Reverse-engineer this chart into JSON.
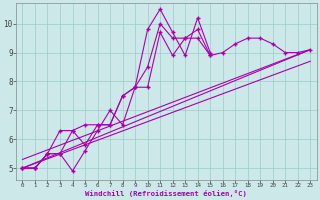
{
  "xlabel": "Windchill (Refroidissement éolien,°C)",
  "bg_color": "#cce8e8",
  "line_color": "#aa00aa",
  "grid_color": "#99cccc",
  "xlim": [
    -0.5,
    23.5
  ],
  "ylim": [
    4.6,
    10.7
  ],
  "xticks": [
    0,
    1,
    2,
    3,
    4,
    5,
    6,
    7,
    8,
    9,
    10,
    11,
    12,
    13,
    14,
    15,
    16,
    17,
    18,
    19,
    20,
    21,
    22,
    23
  ],
  "yticks": [
    5,
    6,
    7,
    8,
    9,
    10
  ],
  "series1_x": [
    0,
    1,
    2,
    3,
    4,
    5,
    6,
    7,
    8,
    9,
    10,
    11,
    12,
    13,
    14,
    15,
    16,
    17,
    18,
    19,
    20,
    21,
    22,
    23
  ],
  "series1_y": [
    5.0,
    5.0,
    5.5,
    5.5,
    6.3,
    5.8,
    6.5,
    6.5,
    7.5,
    7.8,
    8.5,
    10.0,
    9.5,
    9.5,
    9.8,
    8.9,
    9.0,
    9.3,
    9.5,
    9.5,
    9.3,
    9.0,
    9.0,
    9.1
  ],
  "series2_x": [
    0,
    1,
    2,
    3,
    4,
    5,
    6,
    7,
    8,
    9,
    10,
    11,
    12,
    13,
    14,
    15
  ],
  "series2_y": [
    5.0,
    5.0,
    5.5,
    5.5,
    4.9,
    5.6,
    6.3,
    7.0,
    6.5,
    7.8,
    9.8,
    10.5,
    9.7,
    8.9,
    10.2,
    9.0
  ],
  "series3_x": [
    0,
    1,
    2,
    3,
    4,
    5,
    6,
    7,
    8,
    9,
    10,
    11,
    12,
    13,
    14,
    15
  ],
  "series3_y": [
    5.0,
    5.0,
    5.5,
    6.3,
    6.3,
    6.5,
    6.5,
    6.5,
    7.5,
    7.8,
    7.8,
    9.7,
    8.9,
    9.5,
    9.5,
    8.9
  ],
  "trend1_x": [
    0,
    23
  ],
  "trend1_y": [
    5.0,
    9.1
  ],
  "trend2_x": [
    0,
    23
  ],
  "trend2_y": [
    5.0,
    8.7
  ],
  "trend3_x": [
    0,
    23
  ],
  "trend3_y": [
    5.3,
    9.1
  ]
}
